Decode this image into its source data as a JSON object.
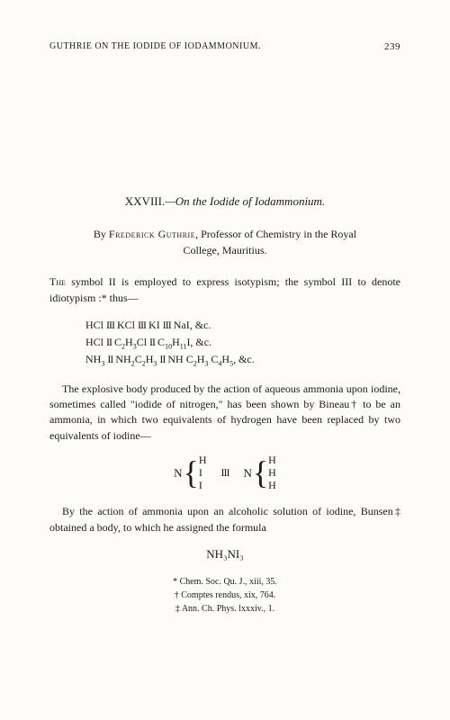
{
  "header": {
    "running_title": "GUTHRIE ON THE IODIDE OF IODAMMONIUM.",
    "page_number": "239"
  },
  "article": {
    "number_roman": "XXVIII.",
    "title_rest": "—On the Iodide of Iodammonium.",
    "author_prefix": "By ",
    "author_name": "Frederick Guthrie",
    "author_suffix": ", Professor of Chemistry in the Royal",
    "author_line2": "College, Mauritius."
  },
  "para1": {
    "first_word": "The",
    "rest": " symbol II is employed to express isotypism; the symbol III to denote idiotypism :* thus—"
  },
  "formulas": {
    "line1_a": "HCl ",
    "line1_b": " KCl ",
    "line1_c": " KI ",
    "line1_d": " NaI, &c.",
    "line2_a": "HCl ",
    "line2_b": " C",
    "line2_c": "H",
    "line2_d": "Cl ",
    "line2_e": " C",
    "line2_f": "H",
    "line2_g": "I, &c.",
    "line3_a": "NH",
    "line3_b": " ",
    "line3_c": " NH",
    "line3_d": "C",
    "line3_e": "H",
    "line3_f": " ",
    "line3_g": " NH C",
    "line3_h": "H",
    "line3_i": " C",
    "line3_j": "H",
    "line3_k": ", &c."
  },
  "para2": "The explosive body produced by the action of aqueous ammonia upon iodine, sometimes called \"iodide of nitrogen,\" has been shown by Bineau† to be an ammonia, in which two equivalents of hydrogen have been replaced by two equivalents of iodine—",
  "brace": {
    "n": "N",
    "left": [
      "H",
      "I",
      "I"
    ],
    "right": [
      "H",
      "H",
      "H"
    ]
  },
  "para3": "By the action of ammonia upon an alcoholic solution of iodine, Bunsen‡ obtained a body, to which he assigned the formula",
  "final_formula": "NH₃NI₃",
  "footnotes": {
    "f1": "* Chem. Soc. Qu. J., xiii, 35.",
    "f2": "† Comptes rendus, xix, 764.",
    "f3": "‡ Ann. Ch. Phys. lxxxiv., 1."
  },
  "subscripts": {
    "s2": "2",
    "s3": "3",
    "s4": "4",
    "s5": "5",
    "s10": "10",
    "s11": "11"
  },
  "symbols": {
    "triple": "III",
    "double": "II"
  }
}
